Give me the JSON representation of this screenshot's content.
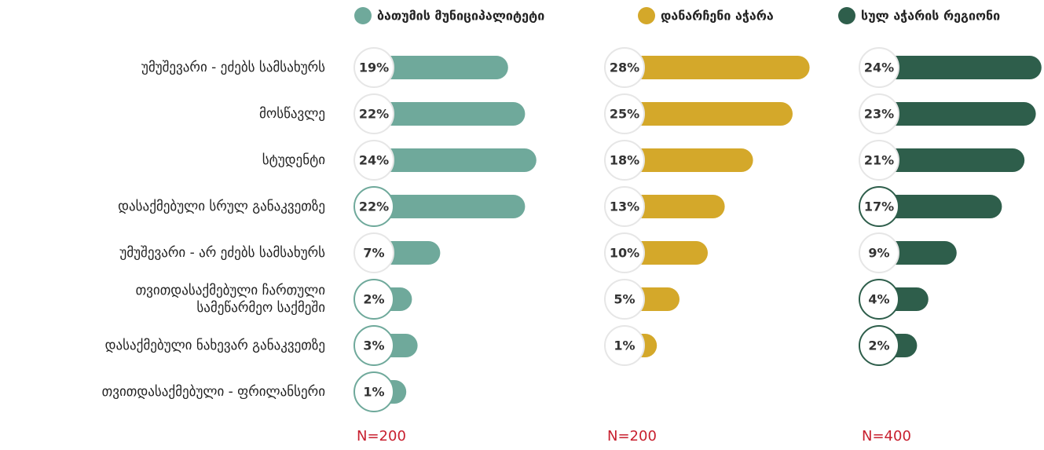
{
  "chart_data": {
    "type": "bar",
    "categories": [
      "უმუშევარი - ეძებს სამსახურს",
      "მოსწავლე",
      "სტუდენტი",
      "დასაქმებული სრულ განაკვეთზე",
      "უმუშევარი - არ ეძებს სამსახურს",
      "თვითდასაქმებული ჩართული\nსამეწარმეო საქმეში",
      "დასაქმებული ნახევარ განაკვეთზე",
      "თვითდასაქმებული - ფრილანსერი"
    ],
    "xlim": [
      0,
      30
    ],
    "series": [
      {
        "name": "ბათუმის მუნიციპალიტეტი",
        "color": "#6fa99b",
        "sample_label": "N=200",
        "values": [
          19,
          22,
          24,
          22,
          7,
          2,
          3,
          1
        ],
        "value_labels": [
          "19%",
          "22%",
          "24%",
          "22%",
          "7%",
          "2%",
          "3%",
          "1%"
        ],
        "highlighted": [
          false,
          false,
          false,
          true,
          false,
          true,
          true,
          true
        ]
      },
      {
        "name": "დანარჩენი აჭარა",
        "color": "#d4a82a",
        "sample_label": "N=200",
        "values": [
          28,
          25,
          18,
          13,
          10,
          5,
          1,
          null
        ],
        "value_labels": [
          "28%",
          "25%",
          "18%",
          "13%",
          "10%",
          "5%",
          "1%",
          null
        ],
        "highlighted": [
          false,
          false,
          false,
          false,
          false,
          false,
          false,
          false
        ]
      },
      {
        "name": "სულ აჭარის რეგიონი",
        "color": "#2e5e4b",
        "sample_label": "N=400",
        "values": [
          24,
          23,
          21,
          17,
          9,
          4,
          2,
          null
        ],
        "value_labels": [
          "24%",
          "23%",
          "21%",
          "17%",
          "9%",
          "4%",
          "2%",
          null
        ],
        "highlighted": [
          false,
          false,
          false,
          true,
          false,
          true,
          true,
          false
        ]
      }
    ]
  }
}
